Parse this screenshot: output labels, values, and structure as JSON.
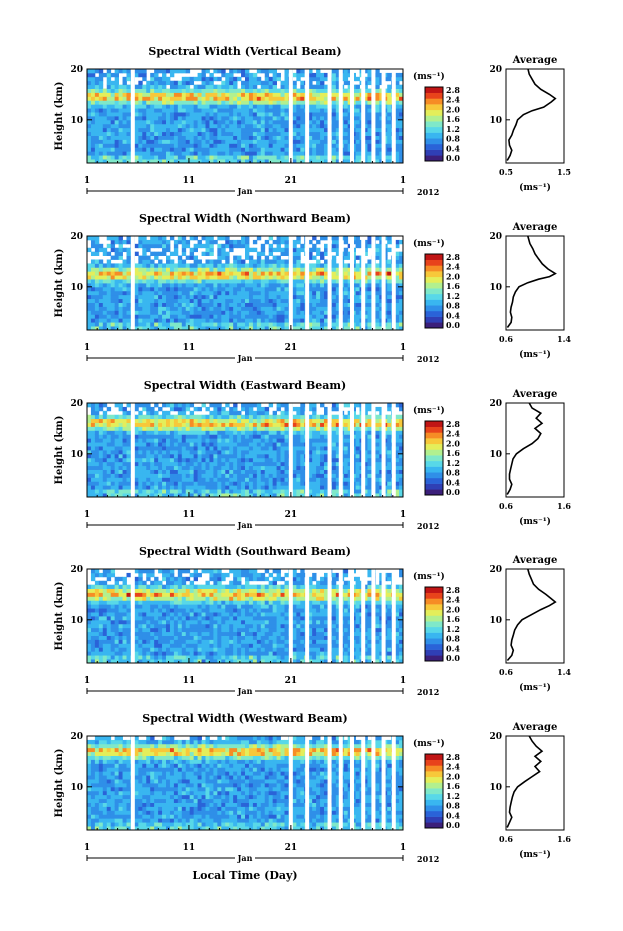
{
  "figure": {
    "x_axis_title": "Local Time (Day)",
    "colors": {
      "colormap": [
        "#3b1f7a",
        "#2f3fb5",
        "#2a63d8",
        "#2f8fe8",
        "#39b6f0",
        "#58d8e8",
        "#7fe8c9",
        "#b2f08f",
        "#e4ee5a",
        "#f7c83a",
        "#f68c25",
        "#e8431b",
        "#c11515"
      ],
      "background": "#ffffff",
      "axes": "#000000"
    }
  },
  "chart_data": [
    {
      "type": "heatmap",
      "title": "Spectral Width (Vertical Beam)",
      "ylabel": "Height (km)",
      "ylim": [
        1.5,
        20
      ],
      "y_ticks": [
        "10",
        "20"
      ],
      "x_ticks": [
        "1",
        "11",
        "21",
        "1"
      ],
      "month_label": "Jan",
      "year_label": "2012",
      "colorbar": {
        "unit": "(ms⁻¹)",
        "range": [
          0,
          2.8
        ],
        "ticks": [
          "2.8",
          "2.4",
          "2.0",
          "1.6",
          "1.2",
          "0.8",
          "0.4",
          "0.0"
        ]
      },
      "data_gaps_days": [
        5.3,
        20.8,
        22.4,
        24.6,
        25.7,
        26.8,
        27.9,
        28.9,
        29.9,
        30.9
      ],
      "profile": {
        "title": "Average",
        "xlabel": "(ms⁻¹)",
        "x_ticks": [
          "0.5",
          "1.5"
        ],
        "xlim": [
          0.5,
          1.5
        ],
        "points": [
          [
            0.52,
            2
          ],
          [
            0.57,
            3
          ],
          [
            0.6,
            4
          ],
          [
            0.56,
            5
          ],
          [
            0.55,
            6
          ],
          [
            0.6,
            7
          ],
          [
            0.63,
            8
          ],
          [
            0.67,
            9
          ],
          [
            0.7,
            10
          ],
          [
            0.8,
            11
          ],
          [
            0.95,
            11.8
          ],
          [
            1.15,
            12.5
          ],
          [
            1.28,
            13.5
          ],
          [
            1.35,
            14.2
          ],
          [
            1.25,
            15
          ],
          [
            1.1,
            16
          ],
          [
            1.0,
            17
          ],
          [
            0.95,
            18
          ],
          [
            0.9,
            19
          ],
          [
            0.88,
            20
          ]
        ]
      }
    },
    {
      "type": "heatmap",
      "title": "Spectral Width (Northward Beam)",
      "ylabel": "Height (km)",
      "ylim": [
        1.5,
        20
      ],
      "y_ticks": [
        "10",
        "20"
      ],
      "x_ticks": [
        "1",
        "11",
        "21",
        "1"
      ],
      "month_label": "Jan",
      "year_label": "2012",
      "colorbar": {
        "unit": "(ms⁻¹)",
        "range": [
          0,
          2.8
        ],
        "ticks": [
          "2.8",
          "2.4",
          "2.0",
          "1.6",
          "1.2",
          "0.8",
          "0.4",
          "0.0"
        ]
      },
      "data_gaps_days": [
        5.3,
        20.8,
        22.4,
        24.6,
        25.7,
        26.8,
        27.9,
        28.9,
        29.9,
        30.9
      ],
      "profile": {
        "title": "Average",
        "xlabel": "(ms⁻¹)",
        "x_ticks": [
          "0.6",
          "1.4"
        ],
        "xlim": [
          0.6,
          1.4
        ],
        "points": [
          [
            0.62,
            2
          ],
          [
            0.67,
            3
          ],
          [
            0.68,
            4
          ],
          [
            0.66,
            5
          ],
          [
            0.67,
            6
          ],
          [
            0.69,
            7
          ],
          [
            0.7,
            8
          ],
          [
            0.73,
            9
          ],
          [
            0.78,
            10
          ],
          [
            0.9,
            10.8
          ],
          [
            1.05,
            11.5
          ],
          [
            1.2,
            12
          ],
          [
            1.28,
            12.6
          ],
          [
            1.18,
            13.5
          ],
          [
            1.1,
            14.5
          ],
          [
            1.05,
            15.5
          ],
          [
            1.0,
            16.5
          ],
          [
            0.97,
            17.5
          ],
          [
            0.93,
            18.5
          ],
          [
            0.9,
            20
          ]
        ]
      }
    },
    {
      "type": "heatmap",
      "title": "Spectral Width (Eastward Beam)",
      "ylabel": "Height (km)",
      "ylim": [
        1.5,
        20
      ],
      "y_ticks": [
        "10",
        "20"
      ],
      "x_ticks": [
        "1",
        "11",
        "21",
        "1"
      ],
      "month_label": "Jan",
      "year_label": "2012",
      "colorbar": {
        "unit": "(ms⁻¹)",
        "range": [
          0,
          2.8
        ],
        "ticks": [
          "2.8",
          "2.4",
          "2.0",
          "1.6",
          "1.2",
          "0.8",
          "0.4",
          "0.0"
        ]
      },
      "data_gaps_days": [
        5.3,
        20.8,
        22.4,
        24.6,
        25.7,
        26.8,
        27.9,
        28.9,
        29.9,
        30.9
      ],
      "profile": {
        "title": "Average",
        "xlabel": "(ms⁻¹)",
        "x_ticks": [
          "0.6",
          "1.6"
        ],
        "xlim": [
          0.6,
          1.6
        ],
        "points": [
          [
            0.62,
            2
          ],
          [
            0.67,
            3
          ],
          [
            0.7,
            4
          ],
          [
            0.66,
            5
          ],
          [
            0.66,
            6
          ],
          [
            0.68,
            7
          ],
          [
            0.7,
            8
          ],
          [
            0.72,
            9
          ],
          [
            0.78,
            10
          ],
          [
            0.9,
            11
          ],
          [
            1.05,
            12
          ],
          [
            1.15,
            13
          ],
          [
            1.2,
            14
          ],
          [
            1.1,
            15
          ],
          [
            1.22,
            16
          ],
          [
            1.12,
            17
          ],
          [
            1.2,
            18
          ],
          [
            1.05,
            19
          ],
          [
            1.0,
            20
          ]
        ]
      }
    },
    {
      "type": "heatmap",
      "title": "Spectral Width (Southward Beam)",
      "ylabel": "Height (km)",
      "ylim": [
        1.5,
        20
      ],
      "y_ticks": [
        "10",
        "20"
      ],
      "x_ticks": [
        "1",
        "11",
        "21",
        "1"
      ],
      "month_label": "Jan",
      "year_label": "2012",
      "colorbar": {
        "unit": "(ms⁻¹)",
        "range": [
          0,
          2.8
        ],
        "ticks": [
          "2.8",
          "2.4",
          "2.0",
          "1.6",
          "1.2",
          "0.8",
          "0.4",
          "0.0"
        ]
      },
      "data_gaps_days": [
        5.3,
        20.8,
        22.4,
        24.6,
        25.7,
        26.8,
        27.9,
        28.9,
        29.9,
        30.9
      ],
      "profile": {
        "title": "Average",
        "xlabel": "(ms⁻¹)",
        "x_ticks": [
          "0.6",
          "1.4"
        ],
        "xlim": [
          0.6,
          1.4
        ],
        "points": [
          [
            0.62,
            2
          ],
          [
            0.68,
            3
          ],
          [
            0.7,
            4
          ],
          [
            0.67,
            5
          ],
          [
            0.68,
            6
          ],
          [
            0.7,
            7
          ],
          [
            0.72,
            8
          ],
          [
            0.76,
            9
          ],
          [
            0.82,
            10
          ],
          [
            0.95,
            11
          ],
          [
            1.08,
            12
          ],
          [
            1.2,
            12.8
          ],
          [
            1.28,
            13.5
          ],
          [
            1.22,
            14.2
          ],
          [
            1.15,
            15
          ],
          [
            1.05,
            16
          ],
          [
            0.98,
            17
          ],
          [
            0.95,
            18
          ],
          [
            0.92,
            19
          ],
          [
            0.9,
            20
          ]
        ]
      }
    },
    {
      "type": "heatmap",
      "title": "Spectral Width (Westward Beam)",
      "ylabel": "Height (km)",
      "ylim": [
        1.5,
        20
      ],
      "y_ticks": [
        "10",
        "20"
      ],
      "x_ticks": [
        "1",
        "11",
        "21",
        "1"
      ],
      "month_label": "Jan",
      "year_label": "2012",
      "colorbar": {
        "unit": "(ms⁻¹)",
        "range": [
          0,
          2.8
        ],
        "ticks": [
          "2.8",
          "2.4",
          "2.0",
          "1.6",
          "1.2",
          "0.8",
          "0.4",
          "0.0"
        ]
      },
      "data_gaps_days": [
        5.3,
        20.8,
        22.4,
        24.6,
        25.7,
        26.8,
        27.9,
        28.9,
        29.9,
        30.9
      ],
      "profile": {
        "title": "Average",
        "xlabel": "(ms⁻¹)",
        "x_ticks": [
          "0.6",
          "1.6"
        ],
        "xlim": [
          0.6,
          1.6
        ],
        "points": [
          [
            0.62,
            2
          ],
          [
            0.66,
            3
          ],
          [
            0.7,
            4
          ],
          [
            0.66,
            5
          ],
          [
            0.67,
            6
          ],
          [
            0.69,
            7
          ],
          [
            0.71,
            8
          ],
          [
            0.74,
            9
          ],
          [
            0.8,
            10
          ],
          [
            0.92,
            11
          ],
          [
            1.05,
            12
          ],
          [
            1.18,
            13
          ],
          [
            1.1,
            14
          ],
          [
            1.2,
            15
          ],
          [
            1.1,
            16
          ],
          [
            1.22,
            17
          ],
          [
            1.12,
            18
          ],
          [
            1.05,
            19
          ],
          [
            1.0,
            20
          ]
        ]
      }
    }
  ]
}
